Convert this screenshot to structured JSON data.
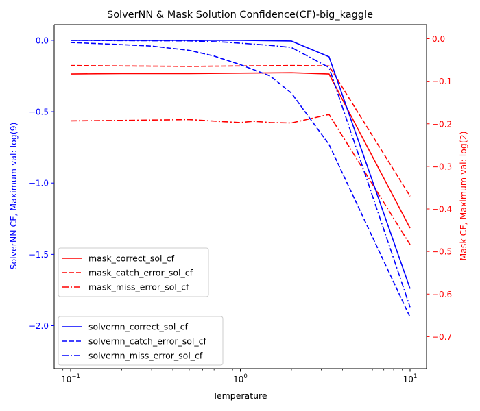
{
  "chart_data": {
    "type": "line",
    "title": "SolverNN & Mask Solution Confidence(CF)-big_kaggle",
    "xlabel": "Temperature",
    "xscale": "log",
    "xlim": [
      0.08,
      12.5
    ],
    "x_ticks": [
      {
        "value": 0.1,
        "base": "10",
        "exp": "−1"
      },
      {
        "value": 1,
        "base": "10",
        "exp": "0"
      },
      {
        "value": 10,
        "base": "10",
        "exp": "1"
      }
    ],
    "x": [
      0.1,
      0.2,
      0.5,
      1.0,
      2.0,
      3.33,
      10.0
    ],
    "y_left": {
      "label": "SolverNN CF, Maximum val: log(9)",
      "color": "#0000ff",
      "ylim": [
        -2.3,
        0.11
      ],
      "ticks": [
        {
          "value": 0.0,
          "label": "0.0"
        },
        {
          "value": -0.5,
          "label": "−0.5"
        },
        {
          "value": -1.0,
          "label": "−1.0"
        },
        {
          "value": -1.5,
          "label": "−1.5"
        },
        {
          "value": -2.0,
          "label": "−2.0"
        }
      ]
    },
    "y_right": {
      "label": "Mask CF, Maximum val: log(2)",
      "color": "#ff0000",
      "ylim": [
        -0.775,
        0.033
      ],
      "ticks": [
        {
          "value": 0.0,
          "label": "0.0"
        },
        {
          "value": -0.1,
          "label": "−0.1"
        },
        {
          "value": -0.2,
          "label": "−0.2"
        },
        {
          "value": -0.3,
          "label": "−0.3"
        },
        {
          "value": -0.4,
          "label": "−0.4"
        },
        {
          "value": -0.5,
          "label": "−0.5"
        },
        {
          "value": -0.6,
          "label": "−0.6"
        },
        {
          "value": -0.7,
          "label": "−0.7"
        }
      ]
    },
    "series_right": [
      {
        "name": "mask_correct_sol_cf",
        "color": "#ff0000",
        "dash": "solid",
        "x": [
          0.1,
          0.2,
          0.5,
          1.0,
          2.0,
          3.33,
          10.0
        ],
        "values": [
          -0.083,
          -0.082,
          -0.082,
          -0.081,
          -0.08,
          -0.083,
          -0.445
        ]
      },
      {
        "name": "mask_catch_error_sol_cf",
        "color": "#ff0000",
        "dash": "dashed",
        "x": [
          0.1,
          0.2,
          0.5,
          1.0,
          2.0,
          3.33,
          10.0
        ],
        "values": [
          -0.063,
          -0.064,
          -0.065,
          -0.064,
          -0.063,
          -0.064,
          -0.37
        ]
      },
      {
        "name": "mask_miss_error_sol_cf",
        "color": "#ff0000",
        "dash": "dashdot",
        "x": [
          0.1,
          0.2,
          0.5,
          0.8,
          1.0,
          1.2,
          1.5,
          2.0,
          3.33,
          10.0
        ],
        "values": [
          -0.193,
          -0.192,
          -0.19,
          -0.195,
          -0.197,
          -0.194,
          -0.197,
          -0.198,
          -0.178,
          -0.484
        ]
      }
    ],
    "series_left": [
      {
        "name": "solvernn_correct_sol_cf",
        "color": "#0000ff",
        "dash": "solid",
        "x": [
          0.1,
          0.2,
          0.5,
          1.0,
          2.0,
          3.33,
          10.0
        ],
        "values": [
          0.0,
          0.0,
          0.0,
          0.0,
          -0.005,
          -0.115,
          -1.74
        ]
      },
      {
        "name": "solvernn_catch_error_sol_cf",
        "color": "#0000ff",
        "dash": "dashed",
        "x": [
          0.1,
          0.2,
          0.3,
          0.5,
          0.7,
          1.0,
          1.5,
          2.0,
          3.33,
          10.0
        ],
        "values": [
          -0.015,
          -0.03,
          -0.04,
          -0.07,
          -0.11,
          -0.17,
          -0.25,
          -0.37,
          -0.73,
          -1.94
        ]
      },
      {
        "name": "solvernn_miss_error_sol_cf",
        "color": "#0000ff",
        "dash": "dashdot",
        "x": [
          0.1,
          0.2,
          0.5,
          0.8,
          1.0,
          1.5,
          2.0,
          3.33,
          10.0
        ],
        "values": [
          0.0,
          -0.002,
          -0.004,
          -0.012,
          -0.02,
          -0.035,
          -0.05,
          -0.19,
          -1.87
        ]
      }
    ],
    "legend_right": {
      "placement": "center-left",
      "entries": [
        "mask_correct_sol_cf",
        "mask_catch_error_sol_cf",
        "mask_miss_error_sol_cf"
      ]
    },
    "legend_left": {
      "placement": "lower-left",
      "entries": [
        "solvernn_correct_sol_cf",
        "solvernn_catch_error_sol_cf",
        "solvernn_miss_error_sol_cf"
      ]
    },
    "grid": false
  }
}
